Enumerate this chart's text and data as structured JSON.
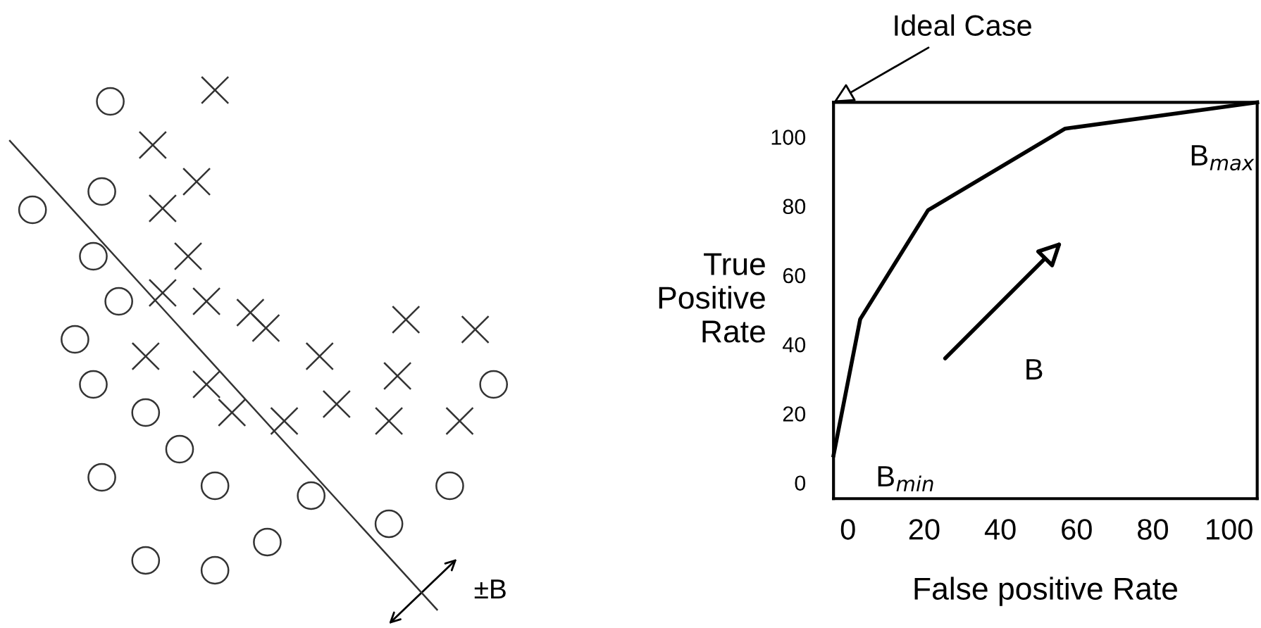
{
  "chart_data": [
    {
      "type": "other",
      "annotations": [
        "±B"
      ]
    },
    {
      "type": "line",
      "xlabel": "False positive Rate",
      "ylabel": "True\nPositive\nRate",
      "series": [
        {
          "color": "#000000",
          "x": [
            -3.8,
            3.2,
            21,
            57,
            107.4
          ],
          "values": [
            7.9,
            47.3,
            78.8,
            102.4,
            110
          ]
        }
      ],
      "xlim": [
        -3.8,
        107.4
      ],
      "ylim": [
        -4.6,
        110
      ],
      "xticks": [
        0,
        20,
        40,
        60,
        80,
        100
      ],
      "yticks": [
        0,
        20,
        40,
        60,
        80,
        100
      ],
      "grid": false,
      "legend": false,
      "annotations": [
        "Ideal Case",
        "B",
        "B$_{max}$",
        "B$_{min}$"
      ]
    }
  ]
}
